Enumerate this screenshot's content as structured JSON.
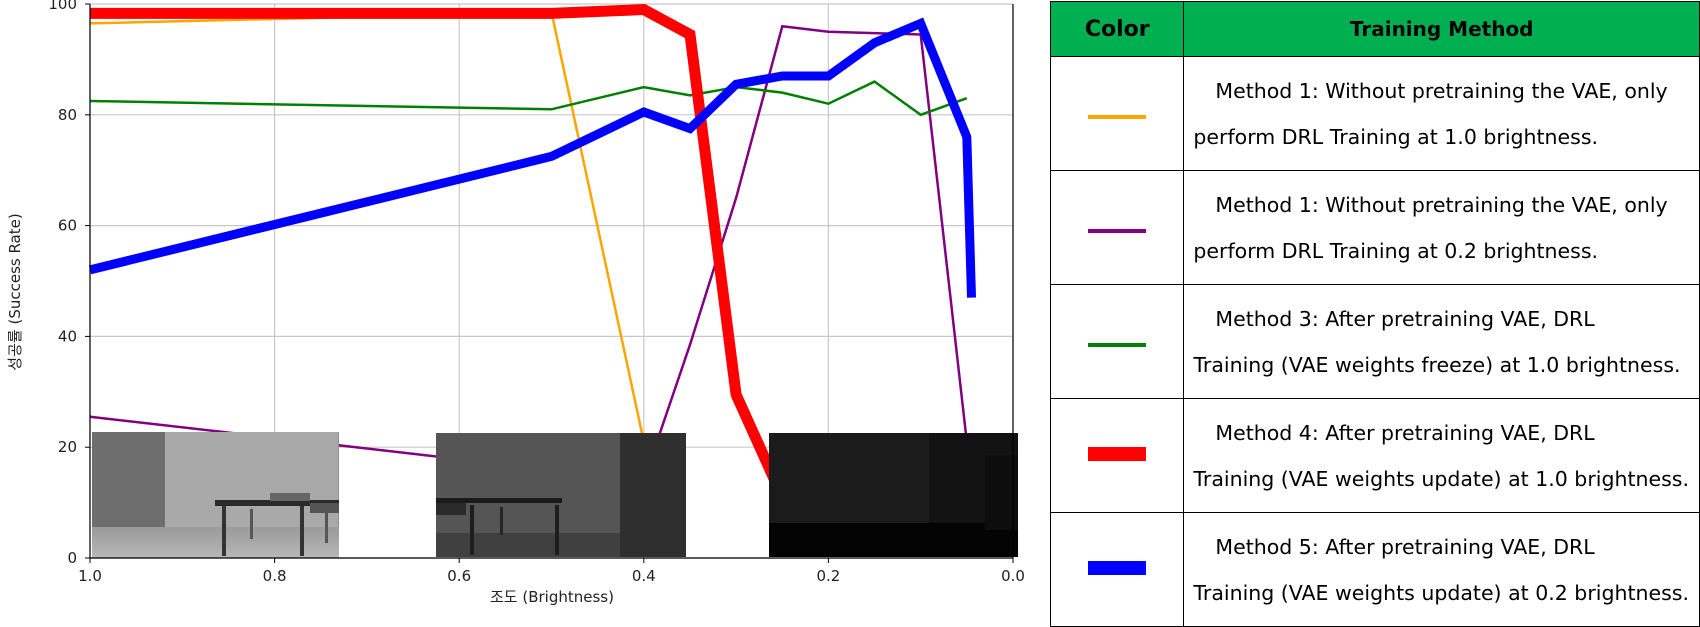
{
  "chart_data": {
    "type": "line",
    "xlabel": "조도 (Brightness)",
    "ylabel": "성공률 (Success Rate)",
    "xlim": [
      1.0,
      0.0
    ],
    "ylim": [
      0,
      100
    ],
    "x_inverted": true,
    "grid": true,
    "x_ticks": [
      "1.0",
      "0.8",
      "0.6",
      "0.4",
      "0.2",
      "0.0"
    ],
    "y_ticks": [
      "0",
      "20",
      "40",
      "60",
      "80",
      "100"
    ],
    "series": [
      {
        "color": "#ffa500",
        "width": 2.5,
        "x": [
          1.0,
          0.5,
          0.4
        ],
        "y": [
          96.5,
          98.5,
          21
        ]
      },
      {
        "color": "#800080",
        "width": 2.5,
        "x": [
          1.0,
          0.4,
          0.35,
          0.3,
          0.25,
          0.2,
          0.1,
          0.05
        ],
        "y": [
          25.5,
          14,
          38.5,
          65,
          96,
          95,
          94.5,
          21
        ]
      },
      {
        "color": "#008000",
        "width": 2.5,
        "x": [
          1.0,
          0.5,
          0.4,
          0.35,
          0.3,
          0.25,
          0.2,
          0.15,
          0.1,
          0.05
        ],
        "y": [
          82.5,
          81,
          85,
          83.5,
          85,
          84,
          82,
          86,
          80,
          83
        ]
      },
      {
        "color": "#ff0000",
        "width": 11,
        "x": [
          1.0,
          0.5,
          0.4,
          0.35,
          0.3,
          0.25
        ],
        "y": [
          98.3,
          98.3,
          99,
          94.5,
          29.5,
          11
        ]
      },
      {
        "color": "#0000ff",
        "width": 9,
        "x": [
          1.0,
          0.5,
          0.4,
          0.35,
          0.3,
          0.25,
          0.2,
          0.15,
          0.1,
          0.05,
          0.045
        ],
        "y": [
          52,
          72.5,
          80.5,
          77.5,
          85.5,
          87,
          87,
          93,
          96.5,
          76,
          47
        ]
      }
    ]
  },
  "legend": {
    "header_color": "Color",
    "header_method": "Training Method",
    "header_bg": "#00b050",
    "rows": [
      {
        "color": "#ffa500",
        "thickness": 4,
        "line1": "Method 1: Without pretraining the VAE, only",
        "line2": "perform DRL Training at 1.0 brightness."
      },
      {
        "color": "#800080",
        "thickness": 4,
        "line1": "Method 1: Without pretraining the VAE, only",
        "line2": "perform DRL Training at 0.2 brightness."
      },
      {
        "color": "#008000",
        "thickness": 4,
        "line1": "Method 3: After pretraining VAE, DRL",
        "line2": "Training (VAE weights freeze) at 1.0 brightness."
      },
      {
        "color": "#ff0000",
        "thickness": 14,
        "line1": "Method 4: After pretraining VAE, DRL",
        "line2": "Training (VAE weights update) at 1.0 brightness."
      },
      {
        "color": "#0000ff",
        "thickness": 14,
        "line1": "Method 5: After pretraining VAE, DRL",
        "line2": "Training (VAE weights update) at 0.2 brightness."
      }
    ]
  },
  "thumbnails": [
    {
      "name": "brightness-1-0-image"
    },
    {
      "name": "brightness-0-5-image"
    },
    {
      "name": "brightness-0-1-image"
    }
  ]
}
